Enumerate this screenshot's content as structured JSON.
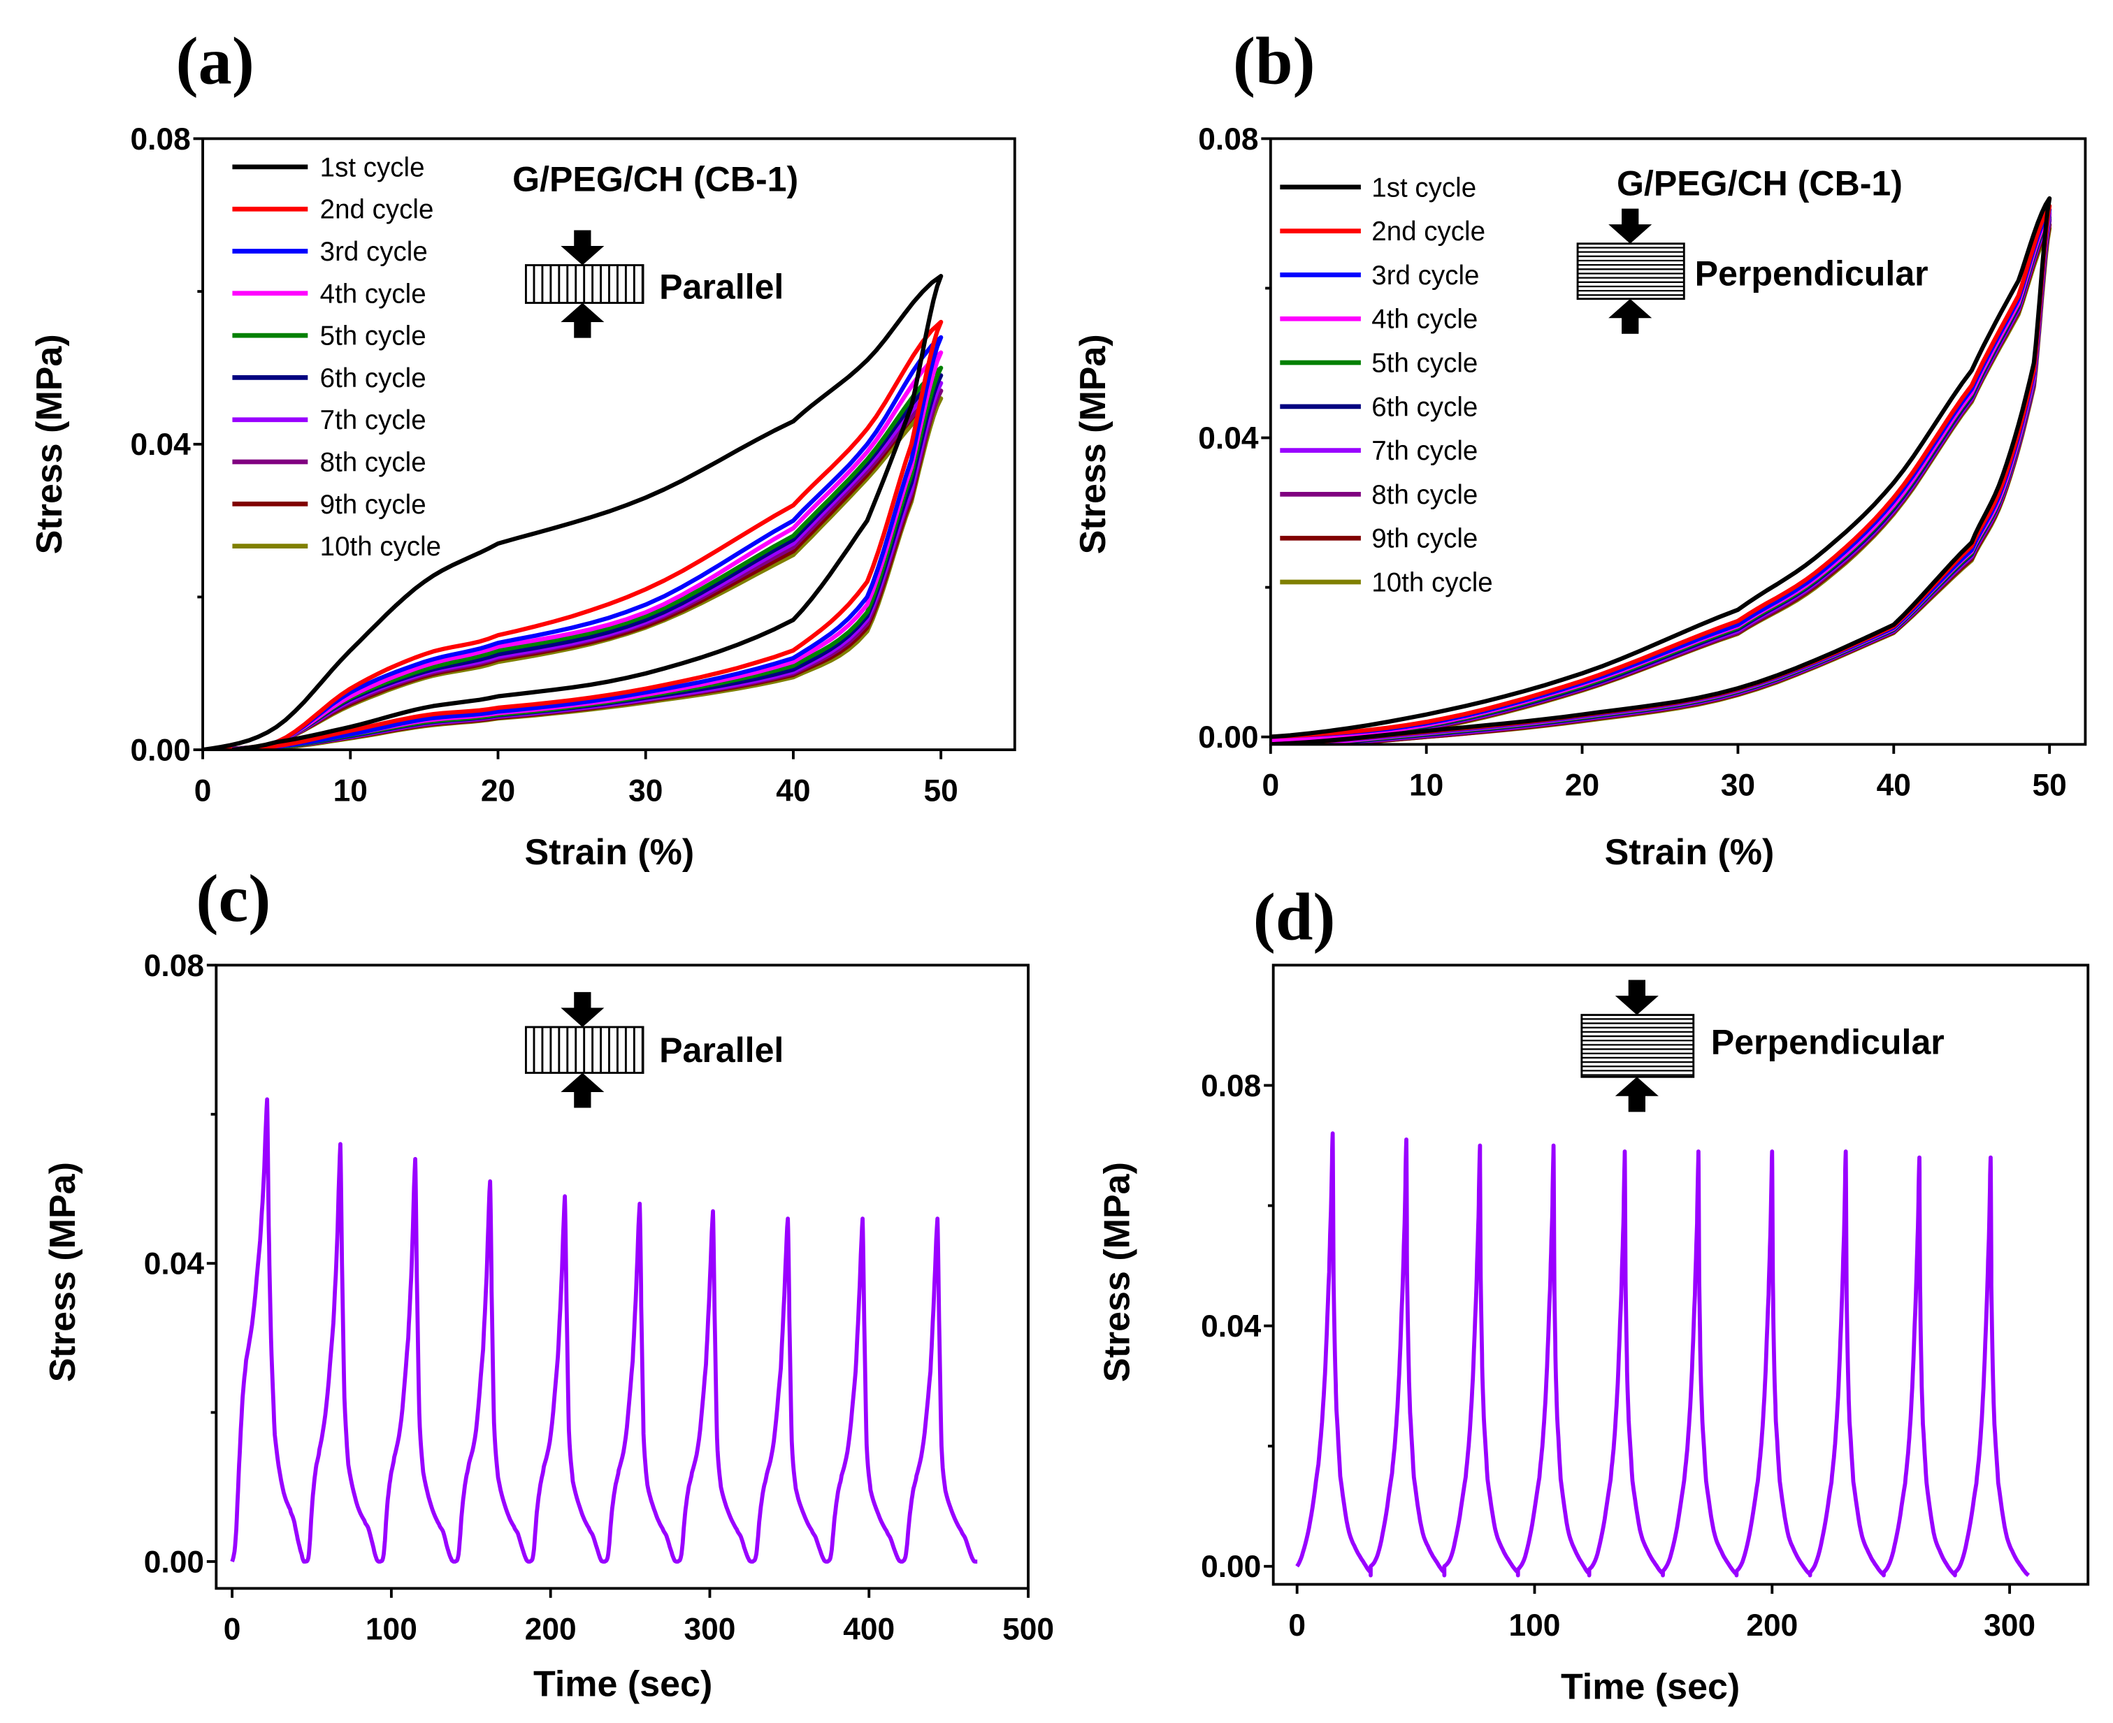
{
  "chart_data": [
    {
      "panel": "(a)",
      "type": "line",
      "title": "G/PEG/CH (CB-1)",
      "inset_label": "Parallel",
      "xlabel": "Strain (%)",
      "ylabel": "Stress (MPa)",
      "xlim": [
        0,
        55
      ],
      "ylim": [
        0,
        0.08
      ],
      "xticks": [
        0,
        10,
        20,
        30,
        40,
        50
      ],
      "yticks": [
        "0.00",
        "0.04",
        "0.08"
      ],
      "legend_position": "top-left",
      "load_x": [
        0,
        5,
        10,
        15,
        20,
        30,
        40,
        45,
        50
      ],
      "unload_x": [
        50,
        48,
        45,
        40,
        30,
        20,
        15,
        10,
        5,
        2
      ],
      "series": [
        {
          "name": "1st cycle",
          "color": "#000000",
          "load": [
            0,
            0.003,
            0.013,
            0.022,
            0.027,
            0.033,
            0.043,
            0.051,
            0.062
          ],
          "unload": [
            0.062,
            0.045,
            0.03,
            0.017,
            0.01,
            0.007,
            0.0055,
            0.003,
            0.001,
            0
          ]
        },
        {
          "name": "2nd cycle",
          "color": "#ff0000",
          "load": [
            0,
            0.001,
            0.008,
            0.0125,
            0.015,
            0.021,
            0.032,
            0.042,
            0.056
          ],
          "unload": [
            0.056,
            0.04,
            0.022,
            0.013,
            0.008,
            0.0055,
            0.0045,
            0.0025,
            0.0005,
            0
          ]
        },
        {
          "name": "3rd cycle",
          "color": "#0000ff",
          "load": [
            0,
            0.001,
            0.0075,
            0.0115,
            0.014,
            0.019,
            0.03,
            0.04,
            0.054
          ],
          "unload": [
            0.054,
            0.038,
            0.02,
            0.012,
            0.0075,
            0.005,
            0.004,
            0.002,
            0.0004,
            0
          ]
        },
        {
          "name": "4th cycle",
          "color": "#ff00ff",
          "load": [
            0,
            0.001,
            0.007,
            0.011,
            0.0135,
            0.018,
            0.029,
            0.039,
            0.052
          ],
          "unload": [
            0.052,
            0.037,
            0.019,
            0.0115,
            0.0072,
            0.0048,
            0.0038,
            0.002,
            0.0004,
            0
          ]
        },
        {
          "name": "5th cycle",
          "color": "#008000",
          "load": [
            0,
            0.001,
            0.0068,
            0.0105,
            0.013,
            0.0175,
            0.028,
            0.038,
            0.05
          ],
          "unload": [
            0.05,
            0.036,
            0.018,
            0.011,
            0.007,
            0.0046,
            0.0036,
            0.0019,
            0.0003,
            0
          ]
        },
        {
          "name": "6th cycle",
          "color": "#000080",
          "load": [
            0,
            0.001,
            0.0066,
            0.0102,
            0.0125,
            0.017,
            0.0275,
            0.0375,
            0.049
          ],
          "unload": [
            0.049,
            0.035,
            0.0175,
            0.0105,
            0.0068,
            0.0045,
            0.0035,
            0.0018,
            0.0003,
            0
          ]
        },
        {
          "name": "7th cycle",
          "color": "#9900ff",
          "load": [
            0,
            0.001,
            0.0064,
            0.01,
            0.0122,
            0.0167,
            0.027,
            0.037,
            0.048
          ],
          "unload": [
            0.048,
            0.034,
            0.017,
            0.0102,
            0.0066,
            0.0044,
            0.0034,
            0.0017,
            0.0003,
            0
          ]
        },
        {
          "name": "8th cycle",
          "color": "#800080",
          "load": [
            0,
            0.001,
            0.0062,
            0.0098,
            0.012,
            0.0165,
            0.0265,
            0.0365,
            0.047
          ],
          "unload": [
            0.047,
            0.0335,
            0.0165,
            0.01,
            0.0065,
            0.0043,
            0.0033,
            0.0017,
            0.0003,
            0
          ]
        },
        {
          "name": "9th cycle",
          "color": "#800000",
          "load": [
            0,
            0.001,
            0.006,
            0.0096,
            0.0118,
            0.0162,
            0.026,
            0.036,
            0.047
          ],
          "unload": [
            0.047,
            0.033,
            0.016,
            0.0098,
            0.0064,
            0.0042,
            0.0032,
            0.0016,
            0.0003,
            0
          ]
        },
        {
          "name": "10th cycle",
          "color": "#808000",
          "load": [
            0,
            0.001,
            0.0058,
            0.0094,
            0.0115,
            0.016,
            0.0255,
            0.0355,
            0.046
          ],
          "unload": [
            0.046,
            0.0325,
            0.0155,
            0.0095,
            0.0062,
            0.0041,
            0.0031,
            0.0015,
            0.0002,
            0
          ]
        }
      ]
    },
    {
      "panel": "(b)",
      "type": "line",
      "title": "G/PEG/CH (CB-1)",
      "inset_label": "Perpendicular",
      "xlabel": "Strain (%)",
      "ylabel": "Stress (MPa)",
      "xlim": [
        0,
        52.3
      ],
      "ylim": [
        -0.001,
        0.08
      ],
      "xticks": [
        0,
        10,
        20,
        30,
        40,
        50
      ],
      "yticks": [
        "0.00",
        "0.04",
        "0.08"
      ],
      "legend_position": "top-left",
      "load_x": [
        0,
        10,
        20,
        30,
        35,
        40,
        45,
        48,
        50
      ],
      "unload_x": [
        50,
        49,
        47,
        45,
        40,
        30,
        20,
        10,
        0
      ],
      "series": [
        {
          "name": "1st cycle",
          "color": "#000000",
          "load": [
            0,
            0.003,
            0.0085,
            0.017,
            0.024,
            0.034,
            0.049,
            0.061,
            0.072
          ],
          "unload": [
            0.072,
            0.05,
            0.035,
            0.026,
            0.015,
            0.0065,
            0.003,
            0.0008,
            -0.001
          ]
        },
        {
          "name": "2nd cycle",
          "color": "#ff0000",
          "load": [
            0,
            0.002,
            0.0075,
            0.0155,
            0.022,
            0.032,
            0.047,
            0.059,
            0.071
          ],
          "unload": [
            0.071,
            0.049,
            0.034,
            0.0255,
            0.0148,
            0.0064,
            0.0029,
            0.0007,
            -0.001
          ]
        },
        {
          "name": "3rd cycle",
          "color": "#0000ff",
          "load": [
            0,
            0.0018,
            0.0072,
            0.015,
            0.0215,
            0.0315,
            0.0465,
            0.0585,
            0.0705
          ],
          "unload": [
            0.0705,
            0.0485,
            0.0335,
            0.025,
            0.0146,
            0.0063,
            0.0028,
            0.0006,
            -0.001
          ]
        },
        {
          "name": "4th cycle",
          "color": "#ff00ff",
          "load": [
            -0.0005,
            0.0016,
            0.007,
            0.0148,
            0.0212,
            0.031,
            0.046,
            0.058,
            0.07
          ],
          "unload": [
            0.07,
            0.048,
            0.033,
            0.0248,
            0.0145,
            0.0062,
            0.0027,
            0.0005,
            -0.0012
          ]
        },
        {
          "name": "5th cycle",
          "color": "#008000",
          "load": [
            -0.0005,
            0.0015,
            0.0068,
            0.0146,
            0.021,
            0.0308,
            0.0458,
            0.0578,
            0.0698
          ],
          "unload": [
            0.0698,
            0.0478,
            0.0328,
            0.0246,
            0.0144,
            0.0061,
            0.0026,
            0.0004,
            -0.0012
          ]
        },
        {
          "name": "6th cycle",
          "color": "#000080",
          "load": [
            -0.0008,
            0.0014,
            0.0066,
            0.0144,
            0.0208,
            0.0305,
            0.0455,
            0.0575,
            0.0695
          ],
          "unload": [
            0.0695,
            0.0476,
            0.0326,
            0.0244,
            0.0143,
            0.006,
            0.0025,
            0.0003,
            -0.0013
          ]
        },
        {
          "name": "7th cycle",
          "color": "#9900ff",
          "load": [
            -0.0008,
            0.0013,
            0.0065,
            0.0142,
            0.0206,
            0.0303,
            0.0453,
            0.0572,
            0.0692
          ],
          "unload": [
            0.0692,
            0.0474,
            0.0324,
            0.0242,
            0.0142,
            0.0059,
            0.0024,
            0.0002,
            -0.0013
          ]
        },
        {
          "name": "8th cycle",
          "color": "#800080",
          "load": [
            -0.001,
            0.0012,
            0.0064,
            0.014,
            0.0204,
            0.0301,
            0.0451,
            0.057,
            0.069
          ],
          "unload": [
            0.069,
            0.0472,
            0.0322,
            0.024,
            0.0141,
            0.0058,
            0.0023,
            0.0001,
            -0.0014
          ]
        },
        {
          "name": "9th cycle",
          "color": "#800000",
          "load": [
            -0.001,
            0.0011,
            0.0063,
            0.0139,
            0.0202,
            0.03,
            0.045,
            0.0568,
            0.0685
          ],
          "unload": [
            0.0685,
            0.047,
            0.032,
            0.0238,
            0.014,
            0.0057,
            0.0022,
            0,
            -0.0014
          ]
        },
        {
          "name": "10th cycle",
          "color": "#808000",
          "load": [
            -0.001,
            0.001,
            0.0062,
            0.0138,
            0.02,
            0.0298,
            0.0448,
            0.0565,
            0.068
          ],
          "unload": [
            0.068,
            0.0468,
            0.0318,
            0.0236,
            0.0139,
            0.0056,
            0.0021,
            0,
            -0.0015
          ]
        }
      ]
    },
    {
      "panel": "(c)",
      "type": "line",
      "inset_label": "Parallel",
      "xlabel": "Time (sec)",
      "ylabel": "Stress (MPa)",
      "xlim": [
        -10,
        500
      ],
      "ylim": [
        -0.0036,
        0.08
      ],
      "xticks": [
        0,
        100,
        200,
        300,
        400,
        500
      ],
      "yticks": [
        "0.00",
        "0.04",
        "0.08"
      ],
      "color": "#9900ff",
      "peak_times": [
        22,
        68,
        115,
        162,
        209,
        256,
        302,
        349,
        396,
        443
      ],
      "peak_values": [
        0.062,
        0.056,
        0.054,
        0.051,
        0.049,
        0.048,
        0.047,
        0.046,
        0.046,
        0.046
      ],
      "valley_times": [
        0,
        46,
        93,
        140,
        187,
        234,
        280,
        327,
        374,
        421,
        468
      ]
    },
    {
      "panel": "(d)",
      "type": "line",
      "inset_label": "Perpendicular",
      "xlabel": "Time (sec)",
      "ylabel": "Stress (MPa)",
      "xlim": [
        -10,
        333
      ],
      "ylim": [
        -0.003,
        0.1
      ],
      "xticks": [
        0,
        100,
        200,
        300
      ],
      "yticks": [
        "0.00",
        "0.04",
        "0.08"
      ],
      "color": "#9900ff",
      "peak_times": [
        15,
        46,
        77,
        108,
        138,
        169,
        200,
        231,
        262,
        292
      ],
      "peak_values": [
        0.072,
        0.071,
        0.07,
        0.07,
        0.069,
        0.069,
        0.069,
        0.069,
        0.068,
        0.068
      ],
      "valley_times": [
        0,
        31,
        62,
        93,
        123,
        154,
        185,
        216,
        247,
        277,
        308
      ]
    }
  ]
}
